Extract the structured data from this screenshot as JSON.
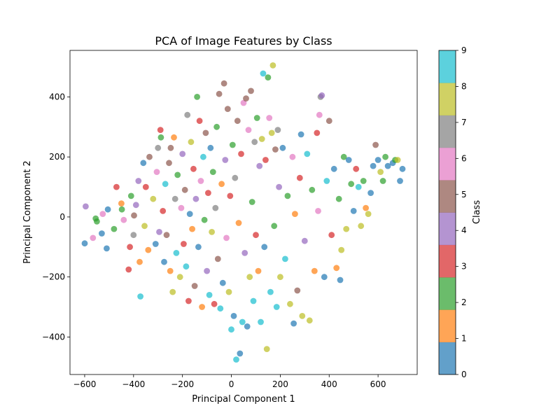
{
  "chart_data": {
    "type": "scatter",
    "title": "PCA of Image Features by Class",
    "xlabel": "Principal Component 1",
    "ylabel": "Principal Component 2",
    "xlim": [
      -660,
      760
    ],
    "ylim": [
      -525,
      555
    ],
    "xticks": [
      -600,
      -400,
      -200,
      0,
      200,
      400,
      600
    ],
    "yticks": [
      -400,
      -200,
      0,
      200,
      400
    ],
    "xtick_labels": [
      "−600",
      "−400",
      "−200",
      "0",
      "200",
      "400",
      "600"
    ],
    "ytick_labels": [
      "−400",
      "−200",
      "0",
      "200",
      "400"
    ],
    "grid": false,
    "marker_alpha": 0.7,
    "colorbar": {
      "label": "Class",
      "range": [
        0,
        9
      ],
      "ticks": [
        0,
        1,
        2,
        3,
        4,
        5,
        6,
        7,
        8,
        9
      ],
      "colors": [
        "#1f77b4",
        "#ff7f0e",
        "#2ca02c",
        "#d62728",
        "#9467bd",
        "#8c564b",
        "#e377c2",
        "#7f7f7f",
        "#bcbd22",
        "#17becf"
      ]
    },
    "points": [
      {
        "x": -596,
        "y": 35,
        "class": 4
      },
      {
        "x": -600,
        "y": -88,
        "class": 0
      },
      {
        "x": -566,
        "y": -70,
        "class": 6
      },
      {
        "x": -555,
        "y": -5,
        "class": 2
      },
      {
        "x": -550,
        "y": -15,
        "class": 2
      },
      {
        "x": -530,
        "y": -55,
        "class": 0
      },
      {
        "x": -526,
        "y": 10,
        "class": 6
      },
      {
        "x": -510,
        "y": -105,
        "class": 0
      },
      {
        "x": -505,
        "y": 25,
        "class": 0
      },
      {
        "x": -480,
        "y": -40,
        "class": 2
      },
      {
        "x": -470,
        "y": 100,
        "class": 3
      },
      {
        "x": -450,
        "y": 45,
        "class": 1
      },
      {
        "x": -448,
        "y": 25,
        "class": 2
      },
      {
        "x": -440,
        "y": -10,
        "class": 6
      },
      {
        "x": -420,
        "y": -175,
        "class": 3
      },
      {
        "x": -415,
        "y": -100,
        "class": 3
      },
      {
        "x": -410,
        "y": 70,
        "class": 2
      },
      {
        "x": -400,
        "y": -60,
        "class": 7
      },
      {
        "x": -398,
        "y": 5,
        "class": 5
      },
      {
        "x": -390,
        "y": 40,
        "class": 4
      },
      {
        "x": -380,
        "y": 120,
        "class": 4
      },
      {
        "x": -375,
        "y": -150,
        "class": 1
      },
      {
        "x": -372,
        "y": -265,
        "class": 9
      },
      {
        "x": -360,
        "y": 180,
        "class": 0
      },
      {
        "x": -355,
        "y": -30,
        "class": 8
      },
      {
        "x": -350,
        "y": 100,
        "class": 3
      },
      {
        "x": -340,
        "y": -110,
        "class": 1
      },
      {
        "x": -335,
        "y": 200,
        "class": 5
      },
      {
        "x": -320,
        "y": 60,
        "class": 8
      },
      {
        "x": -310,
        "y": -90,
        "class": 0
      },
      {
        "x": -305,
        "y": 150,
        "class": 6
      },
      {
        "x": -300,
        "y": 230,
        "class": 7
      },
      {
        "x": -295,
        "y": -50,
        "class": 4
      },
      {
        "x": -290,
        "y": 290,
        "class": 3
      },
      {
        "x": -288,
        "y": 265,
        "class": 2
      },
      {
        "x": -280,
        "y": 20,
        "class": 3
      },
      {
        "x": -275,
        "y": -150,
        "class": 0
      },
      {
        "x": -270,
        "y": 110,
        "class": 9
      },
      {
        "x": -265,
        "y": -60,
        "class": 5
      },
      {
        "x": -255,
        "y": 180,
        "class": 5
      },
      {
        "x": -250,
        "y": -180,
        "class": 1
      },
      {
        "x": -248,
        "y": 230,
        "class": 5
      },
      {
        "x": -240,
        "y": -250,
        "class": 8
      },
      {
        "x": -235,
        "y": 265,
        "class": 1
      },
      {
        "x": -230,
        "y": 60,
        "class": 7
      },
      {
        "x": -225,
        "y": -120,
        "class": 9
      },
      {
        "x": -220,
        "y": 140,
        "class": 2
      },
      {
        "x": -210,
        "y": -200,
        "class": 8
      },
      {
        "x": -205,
        "y": 30,
        "class": 6
      },
      {
        "x": -200,
        "y": 210,
        "class": 4
      },
      {
        "x": -195,
        "y": -90,
        "class": 3
      },
      {
        "x": -190,
        "y": 90,
        "class": 5
      },
      {
        "x": -185,
        "y": -165,
        "class": 9
      },
      {
        "x": -180,
        "y": 340,
        "class": 7
      },
      {
        "x": -175,
        "y": -280,
        "class": 3
      },
      {
        "x": -170,
        "y": 10,
        "class": 0
      },
      {
        "x": -165,
        "y": 250,
        "class": 8
      },
      {
        "x": -160,
        "y": -40,
        "class": 1
      },
      {
        "x": -155,
        "y": 160,
        "class": 3
      },
      {
        "x": -150,
        "y": -230,
        "class": 5
      },
      {
        "x": -145,
        "y": 60,
        "class": 4
      },
      {
        "x": -140,
        "y": 400,
        "class": 2
      },
      {
        "x": -135,
        "y": -100,
        "class": 0
      },
      {
        "x": -130,
        "y": 320,
        "class": 3
      },
      {
        "x": -125,
        "y": 120,
        "class": 6
      },
      {
        "x": -120,
        "y": -300,
        "class": 1
      },
      {
        "x": -115,
        "y": 200,
        "class": 9
      },
      {
        "x": -110,
        "y": -10,
        "class": 2
      },
      {
        "x": -105,
        "y": 280,
        "class": 5
      },
      {
        "x": -100,
        "y": -180,
        "class": 4
      },
      {
        "x": -95,
        "y": 80,
        "class": 3
      },
      {
        "x": -90,
        "y": -260,
        "class": 9
      },
      {
        "x": -85,
        "y": 230,
        "class": 0
      },
      {
        "x": -80,
        "y": -50,
        "class": 8
      },
      {
        "x": -75,
        "y": 150,
        "class": 2
      },
      {
        "x": -70,
        "y": -290,
        "class": 3
      },
      {
        "x": -65,
        "y": 30,
        "class": 7
      },
      {
        "x": -60,
        "y": 300,
        "class": 2
      },
      {
        "x": -55,
        "y": -140,
        "class": 5
      },
      {
        "x": -50,
        "y": 410,
        "class": 5
      },
      {
        "x": -45,
        "y": -305,
        "class": 9
      },
      {
        "x": -40,
        "y": 110,
        "class": 1
      },
      {
        "x": -35,
        "y": -220,
        "class": 0
      },
      {
        "x": -30,
        "y": 445,
        "class": 5
      },
      {
        "x": -25,
        "y": 190,
        "class": 4
      },
      {
        "x": -20,
        "y": -70,
        "class": 6
      },
      {
        "x": -15,
        "y": 360,
        "class": 5
      },
      {
        "x": -10,
        "y": -250,
        "class": 8
      },
      {
        "x": -5,
        "y": 70,
        "class": 3
      },
      {
        "x": 0,
        "y": -375,
        "class": 9
      },
      {
        "x": 5,
        "y": 240,
        "class": 2
      },
      {
        "x": 10,
        "y": -330,
        "class": 0
      },
      {
        "x": 15,
        "y": 130,
        "class": 7
      },
      {
        "x": 20,
        "y": -475,
        "class": 9
      },
      {
        "x": 25,
        "y": 320,
        "class": 5
      },
      {
        "x": 30,
        "y": -20,
        "class": 1
      },
      {
        "x": 35,
        "y": -455,
        "class": 0
      },
      {
        "x": 40,
        "y": 210,
        "class": 3
      },
      {
        "x": 45,
        "y": -350,
        "class": 9
      },
      {
        "x": 50,
        "y": 380,
        "class": 6
      },
      {
        "x": 55,
        "y": -120,
        "class": 4
      },
      {
        "x": 60,
        "y": 395,
        "class": 5
      },
      {
        "x": 65,
        "y": -365,
        "class": 0
      },
      {
        "x": 70,
        "y": 290,
        "class": 6
      },
      {
        "x": 75,
        "y": -200,
        "class": 8
      },
      {
        "x": 80,
        "y": 420,
        "class": 5
      },
      {
        "x": 85,
        "y": 50,
        "class": 2
      },
      {
        "x": 90,
        "y": -280,
        "class": 9
      },
      {
        "x": 95,
        "y": 250,
        "class": 7
      },
      {
        "x": 100,
        "y": -60,
        "class": 3
      },
      {
        "x": 105,
        "y": 330,
        "class": 2
      },
      {
        "x": 110,
        "y": -180,
        "class": 1
      },
      {
        "x": 115,
        "y": 170,
        "class": 4
      },
      {
        "x": 120,
        "y": -350,
        "class": 9
      },
      {
        "x": 125,
        "y": 260,
        "class": 8
      },
      {
        "x": 130,
        "y": 478,
        "class": 9
      },
      {
        "x": 135,
        "y": -100,
        "class": 0
      },
      {
        "x": 140,
        "y": 190,
        "class": 3
      },
      {
        "x": 145,
        "y": -440,
        "class": 8
      },
      {
        "x": 150,
        "y": 465,
        "class": 2
      },
      {
        "x": 155,
        "y": 330,
        "class": 6
      },
      {
        "x": 160,
        "y": -250,
        "class": 9
      },
      {
        "x": 165,
        "y": 280,
        "class": 8
      },
      {
        "x": 170,
        "y": 505,
        "class": 8
      },
      {
        "x": 175,
        "y": -30,
        "class": 2
      },
      {
        "x": 180,
        "y": 225,
        "class": 5
      },
      {
        "x": 185,
        "y": -300,
        "class": 9
      },
      {
        "x": 190,
        "y": 290,
        "class": 7
      },
      {
        "x": 195,
        "y": 100,
        "class": 4
      },
      {
        "x": 200,
        "y": -200,
        "class": 8
      },
      {
        "x": 210,
        "y": 230,
        "class": 0
      },
      {
        "x": 220,
        "y": -140,
        "class": 9
      },
      {
        "x": 230,
        "y": 70,
        "class": 2
      },
      {
        "x": 240,
        "y": -290,
        "class": 8
      },
      {
        "x": 250,
        "y": 200,
        "class": 6
      },
      {
        "x": 255,
        "y": -355,
        "class": 0
      },
      {
        "x": 260,
        "y": 10,
        "class": 1
      },
      {
        "x": 270,
        "y": -245,
        "class": 5
      },
      {
        "x": 280,
        "y": 130,
        "class": 3
      },
      {
        "x": 285,
        "y": 275,
        "class": 0
      },
      {
        "x": 290,
        "y": -330,
        "class": 8
      },
      {
        "x": 300,
        "y": -80,
        "class": 4
      },
      {
        "x": 310,
        "y": 210,
        "class": 9
      },
      {
        "x": 320,
        "y": -345,
        "class": 8
      },
      {
        "x": 330,
        "y": 90,
        "class": 2
      },
      {
        "x": 340,
        "y": -180,
        "class": 1
      },
      {
        "x": 350,
        "y": 280,
        "class": 3
      },
      {
        "x": 355,
        "y": 20,
        "class": 6
      },
      {
        "x": 360,
        "y": 340,
        "class": 6
      },
      {
        "x": 365,
        "y": 400,
        "class": 7
      },
      {
        "x": 370,
        "y": 405,
        "class": 4
      },
      {
        "x": 380,
        "y": -200,
        "class": 0
      },
      {
        "x": 390,
        "y": 120,
        "class": 9
      },
      {
        "x": 400,
        "y": 320,
        "class": 5
      },
      {
        "x": 410,
        "y": -60,
        "class": 3
      },
      {
        "x": 420,
        "y": 160,
        "class": 0
      },
      {
        "x": 430,
        "y": -170,
        "class": 1
      },
      {
        "x": 440,
        "y": 60,
        "class": 2
      },
      {
        "x": 445,
        "y": -210,
        "class": 0
      },
      {
        "x": 450,
        "y": -110,
        "class": 8
      },
      {
        "x": 460,
        "y": 200,
        "class": 2
      },
      {
        "x": 470,
        "y": -40,
        "class": 8
      },
      {
        "x": 480,
        "y": 190,
        "class": 0
      },
      {
        "x": 490,
        "y": 110,
        "class": 2
      },
      {
        "x": 500,
        "y": 20,
        "class": 0
      },
      {
        "x": 510,
        "y": 160,
        "class": 3
      },
      {
        "x": 520,
        "y": 100,
        "class": 9
      },
      {
        "x": 530,
        "y": -30,
        "class": 8
      },
      {
        "x": 540,
        "y": 120,
        "class": 2
      },
      {
        "x": 550,
        "y": 30,
        "class": 1
      },
      {
        "x": 560,
        "y": 10,
        "class": 8
      },
      {
        "x": 570,
        "y": 80,
        "class": 0
      },
      {
        "x": 580,
        "y": 170,
        "class": 0
      },
      {
        "x": 590,
        "y": 240,
        "class": 5
      },
      {
        "x": 600,
        "y": 190,
        "class": 0
      },
      {
        "x": 610,
        "y": 150,
        "class": 8
      },
      {
        "x": 620,
        "y": 120,
        "class": 2
      },
      {
        "x": 630,
        "y": 200,
        "class": 2
      },
      {
        "x": 640,
        "y": 170,
        "class": 0
      },
      {
        "x": 660,
        "y": 180,
        "class": 0
      },
      {
        "x": 670,
        "y": 190,
        "class": 2
      },
      {
        "x": 680,
        "y": 190,
        "class": 8
      },
      {
        "x": 690,
        "y": 120,
        "class": 0
      },
      {
        "x": 700,
        "y": 160,
        "class": 0
      }
    ]
  }
}
